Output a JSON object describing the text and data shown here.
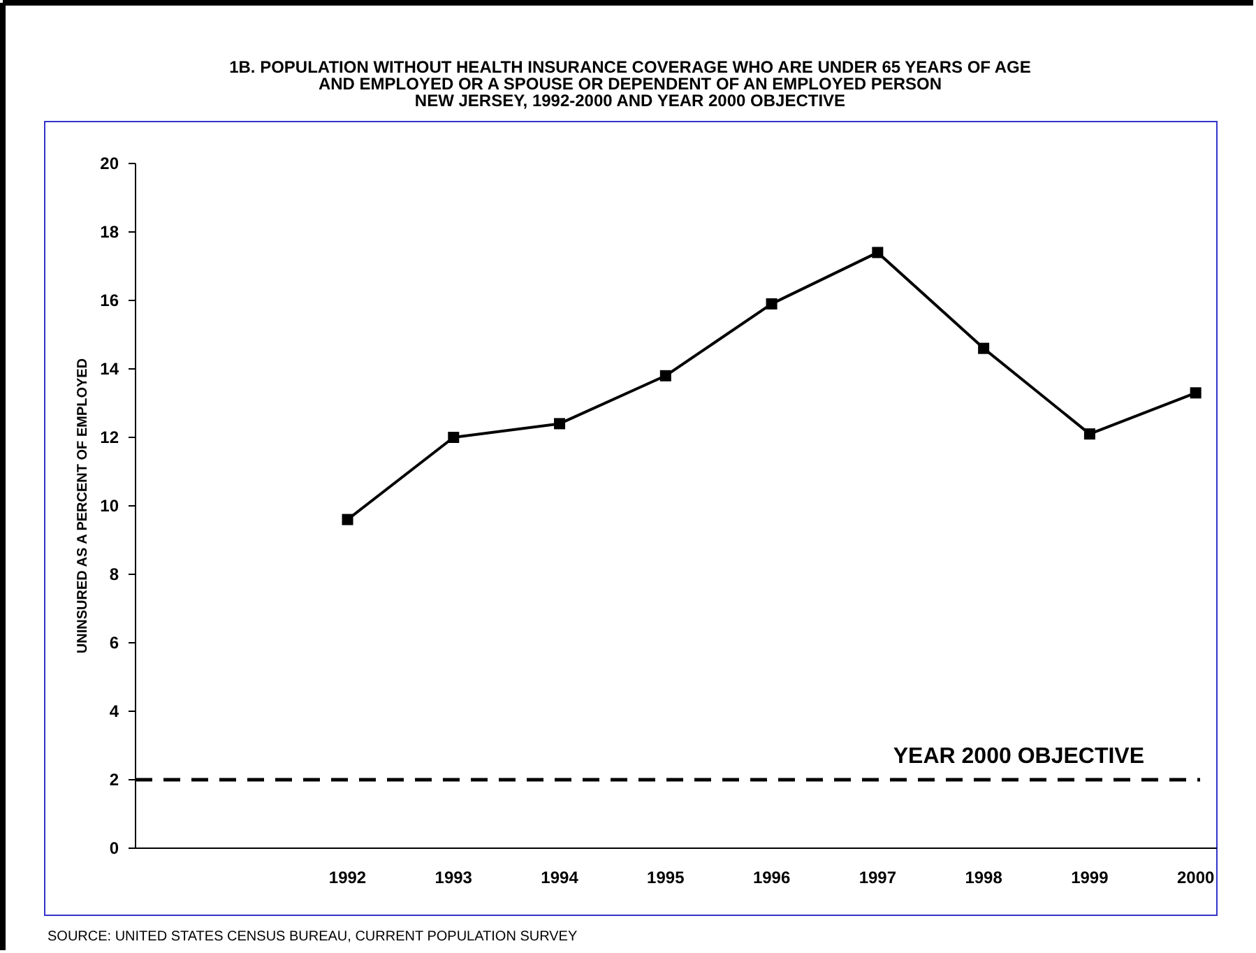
{
  "chart_data": {
    "type": "line",
    "title": "1B. POPULATION WITHOUT HEALTH INSURANCE COVERAGE WHO ARE UNDER 65 YEARS OF AGE\nAND EMPLOYED OR A SPOUSE OR DEPENDENT OF AN EMPLOYED PERSON\nNEW JERSEY, 1992-2000 AND YEAR 2000 OBJECTIVE",
    "ylabel": "UNINSURED AS A PERCENT OF EMPLOYED",
    "categories": [
      null,
      null,
      "1992",
      "1993",
      "1994",
      "1995",
      "1996",
      "1997",
      "1998",
      "1999",
      "2000"
    ],
    "series": [
      {
        "color": "#000000",
        "values": [
          null,
          null,
          9.6,
          12.0,
          12.4,
          13.8,
          15.9,
          17.4,
          14.6,
          12.1,
          13.3
        ]
      }
    ],
    "ylim": [
      0,
      20
    ],
    "yticks": [
      0,
      2,
      4,
      6,
      8,
      10,
      12,
      14,
      16,
      18,
      20
    ],
    "grid": false,
    "marker": "square",
    "line_style": "solid",
    "ref_lines": [
      {
        "axis": "y",
        "value": 2,
        "label": "YEAR 2000 OBJECTIVE",
        "color": "#000000",
        "line_style": "dashed"
      }
    ],
    "annotations": [
      "SOURCE:  UNITED STATES CENSUS BUREAU, CURRENT POPULATION SURVEY"
    ]
  }
}
